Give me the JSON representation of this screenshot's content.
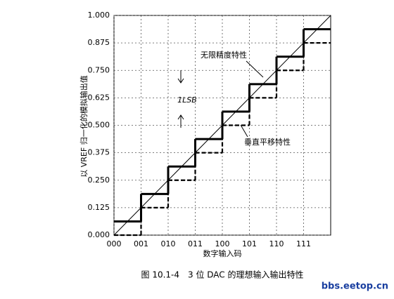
{
  "chart_data": {
    "type": "step",
    "ylabel": "以 VREF 归一化的模拟输出值",
    "xlabel": "数字输入码",
    "caption": "图 10.1-4　3 位 DAC 的理想输入输出特性",
    "watermark": "bbs.eetop.cn",
    "annotations": [
      "无限精度特性",
      "垂直平移特性",
      "1LSB"
    ],
    "x": [
      0,
      1,
      2,
      3,
      4,
      5,
      6,
      7
    ],
    "xlim": [
      0,
      8
    ],
    "xticks": [
      {
        "value": 0,
        "label": "000"
      },
      {
        "value": 1,
        "label": "001"
      },
      {
        "value": 2,
        "label": "010"
      },
      {
        "value": 3,
        "label": "011"
      },
      {
        "value": 4,
        "label": "100"
      },
      {
        "value": 5,
        "label": "101"
      },
      {
        "value": 6,
        "label": "110"
      },
      {
        "value": 7,
        "label": "111"
      }
    ],
    "ylim": [
      0,
      1
    ],
    "yticks": [
      {
        "value": 0,
        "label": "0.000"
      },
      {
        "value": 0.125,
        "label": "0.125"
      },
      {
        "value": 0.25,
        "label": "0.250"
      },
      {
        "value": 0.375,
        "label": "0.375"
      },
      {
        "value": 0.5,
        "label": "0.500"
      },
      {
        "value": 0.625,
        "label": "0.625"
      },
      {
        "value": 0.75,
        "label": "0.750"
      },
      {
        "value": 0.875,
        "label": "0.875"
      },
      {
        "value": 1,
        "label": "1.000"
      }
    ],
    "grid": true,
    "series": [
      {
        "name": "无限精度特性",
        "color": "#000000",
        "dashed": false,
        "values": [
          0.0625,
          0.1875,
          0.3125,
          0.4375,
          0.5625,
          0.6875,
          0.8125,
          0.9375
        ]
      },
      {
        "name": "垂直平移特性",
        "color": "#000000",
        "dashed": true,
        "values": [
          0,
          0.125,
          0.25,
          0.375,
          0.5,
          0.625,
          0.75,
          0.875
        ]
      }
    ]
  }
}
